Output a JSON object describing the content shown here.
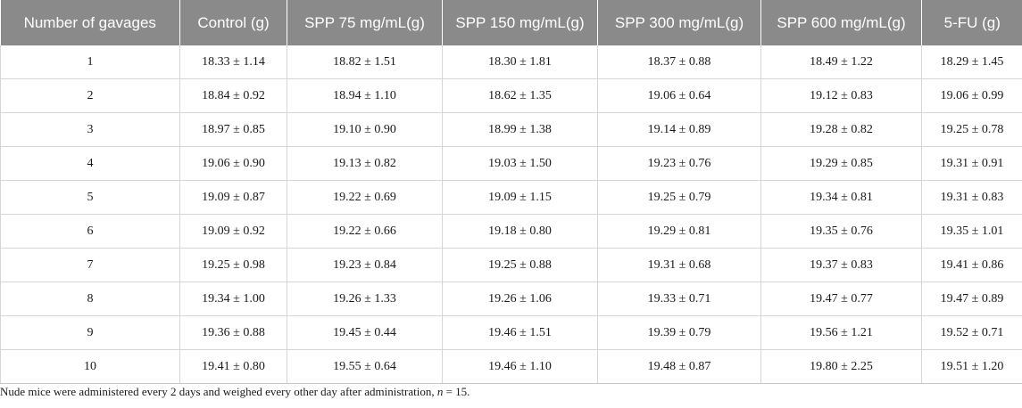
{
  "table": {
    "headers": [
      "Number of gavages",
      "Control (g)",
      "SPP 75 mg/mL(g)",
      "SPP 150 mg/mL(g)",
      "SPP 300 mg/mL(g)",
      "SPP 600 mg/mL(g)",
      "5-FU (g)"
    ],
    "rows": [
      [
        "1",
        "18.33 ± 1.14",
        "18.82 ± 1.51",
        "18.30 ± 1.81",
        "18.37 ± 0.88",
        "18.49 ± 1.22",
        "18.29 ± 1.45"
      ],
      [
        "2",
        "18.84 ± 0.92",
        "18.94 ± 1.10",
        "18.62 ± 1.35",
        "19.06 ± 0.64",
        "19.12 ± 0.83",
        "19.06 ± 0.99"
      ],
      [
        "3",
        "18.97 ± 0.85",
        "19.10 ± 0.90",
        "18.99 ± 1.38",
        "19.14 ± 0.89",
        "19.28 ± 0.82",
        "19.25 ± 0.78"
      ],
      [
        "4",
        "19.06 ± 0.90",
        "19.13 ± 0.82",
        "19.03 ± 1.50",
        "19.23 ± 0.76",
        "19.29 ± 0.85",
        "19.31 ± 0.91"
      ],
      [
        "5",
        "19.09 ± 0.87",
        "19.22 ± 0.69",
        "19.09 ± 1.15",
        "19.25 ± 0.79",
        "19.34 ± 0.81",
        "19.31 ± 0.83"
      ],
      [
        "6",
        "19.09 ± 0.92",
        "19.22 ± 0.66",
        "19.18 ± 0.80",
        "19.29 ± 0.81",
        "19.35 ± 0.76",
        "19.35 ± 1.01"
      ],
      [
        "7",
        "19.25 ± 0.98",
        "19.23 ± 0.84",
        "19.25 ± 0.88",
        "19.31 ± 0.68",
        "19.37 ± 0.83",
        "19.41 ± 0.86"
      ],
      [
        "8",
        "19.34 ± 1.00",
        "19.26 ± 1.33",
        "19.26 ± 1.06",
        "19.33 ± 0.71",
        "19.47 ± 0.77",
        "19.47 ± 0.89"
      ],
      [
        "9",
        "19.36 ± 0.88",
        "19.45 ± 0.44",
        "19.46 ± 1.51",
        "19.39 ± 0.79",
        "19.56 ± 1.21",
        "19.52 ± 0.71"
      ],
      [
        "10",
        "19.41 ± 0.80",
        "19.55 ± 0.64",
        "19.46 ± 1.10",
        "19.48 ± 0.87",
        "19.80 ± 2.25",
        "19.51 ± 1.20"
      ]
    ]
  },
  "footnote": {
    "text_before": "Nude mice were administered every 2 days and weighed every other day after administration, ",
    "n_symbol": "n",
    "text_after": " = 15."
  },
  "colors": {
    "header_bg": "#8a8a8a",
    "header_text": "#ffffff",
    "grid": "#d6d6d6"
  }
}
